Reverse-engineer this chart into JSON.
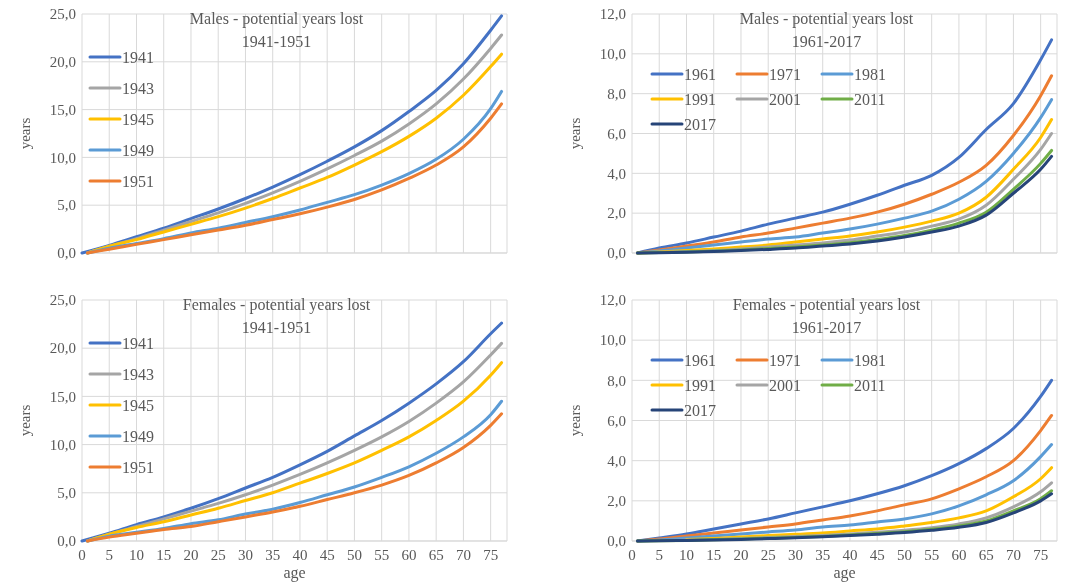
{
  "chart_data": [
    {
      "type": "line",
      "title": "Males - potential years lost\n1941-1951",
      "ylabel": "years",
      "xlim": [
        0,
        78
      ],
      "xticks": [
        0,
        5,
        10,
        15,
        20,
        25,
        30,
        35,
        40,
        45,
        50,
        55,
        60,
        65,
        70,
        75
      ],
      "ylim": [
        0,
        25
      ],
      "yticks": [
        {
          "value": 0,
          "label": "0,0"
        },
        {
          "value": 5,
          "label": "5,0"
        },
        {
          "value": 10,
          "label": "10,0"
        },
        {
          "value": 15,
          "label": "15,0"
        },
        {
          "value": 20,
          "label": "20,0"
        },
        {
          "value": 25,
          "label": "25,0"
        }
      ],
      "grid": true,
      "legend": "top left",
      "tick_labels": "y",
      "line_style": "solid",
      "marker": "none",
      "series": [
        {
          "name": "1941",
          "color": "#4472c4",
          "x": [
            0,
            5,
            10,
            15,
            20,
            25,
            30,
            35,
            40,
            45,
            50,
            55,
            60,
            65,
            70,
            75,
            77
          ],
          "values": [
            0,
            0.8,
            1.7,
            2.6,
            3.6,
            4.6,
            5.7,
            6.9,
            8.2,
            9.6,
            11.1,
            12.8,
            14.8,
            17.0,
            19.8,
            23.3,
            24.8
          ]
        },
        {
          "name": "1943",
          "color": "#a5a5a5",
          "x": [
            1,
            5,
            10,
            15,
            20,
            25,
            30,
            35,
            40,
            45,
            50,
            55,
            60,
            65,
            70,
            75,
            77
          ],
          "values": [
            0,
            0.7,
            1.5,
            2.4,
            3.3,
            4.2,
            5.2,
            6.3,
            7.5,
            8.8,
            10.2,
            11.7,
            13.5,
            15.6,
            18.2,
            21.4,
            22.8
          ]
        },
        {
          "name": "1945",
          "color": "#ffc000",
          "x": [
            1,
            5,
            10,
            15,
            20,
            25,
            30,
            35,
            40,
            45,
            50,
            55,
            60,
            65,
            70,
            75,
            77
          ],
          "values": [
            0,
            0.7,
            1.4,
            2.2,
            3.0,
            3.8,
            4.7,
            5.7,
            6.8,
            7.9,
            9.2,
            10.6,
            12.2,
            14.1,
            16.5,
            19.5,
            20.8
          ]
        },
        {
          "name": "1949",
          "color": "#5b9bd5",
          "x": [
            1,
            5,
            10,
            15,
            20,
            25,
            30,
            35,
            40,
            45,
            50,
            55,
            60,
            65,
            70,
            75,
            77
          ],
          "values": [
            0,
            0.5,
            1.0,
            1.5,
            2.1,
            2.6,
            3.2,
            3.8,
            4.5,
            5.3,
            6.1,
            7.1,
            8.3,
            9.8,
            11.9,
            15.1,
            16.9
          ]
        },
        {
          "name": "1951",
          "color": "#ed7d31",
          "x": [
            1,
            5,
            10,
            15,
            20,
            25,
            30,
            35,
            40,
            45,
            50,
            55,
            60,
            65,
            70,
            75,
            77
          ],
          "values": [
            0,
            0.4,
            0.9,
            1.4,
            1.9,
            2.4,
            2.9,
            3.5,
            4.1,
            4.8,
            5.6,
            6.6,
            7.8,
            9.2,
            11.1,
            14.1,
            15.6
          ]
        }
      ]
    },
    {
      "type": "line",
      "title": "Males - potential years lost\n1961-2017",
      "ylabel": "years",
      "xlim": [
        0,
        78
      ],
      "xticks": [
        0,
        5,
        10,
        15,
        20,
        25,
        30,
        35,
        40,
        45,
        50,
        55,
        60,
        65,
        70,
        75
      ],
      "ylim": [
        0,
        12
      ],
      "yticks": [
        {
          "value": 0,
          "label": "0,0"
        },
        {
          "value": 2,
          "label": "2,0"
        },
        {
          "value": 4,
          "label": "4,0"
        },
        {
          "value": 6,
          "label": "6,0"
        },
        {
          "value": 8,
          "label": "8,0"
        },
        {
          "value": 10,
          "label": "10,0"
        },
        {
          "value": 12,
          "label": "12,0"
        }
      ],
      "grid": true,
      "legend": "top left",
      "tick_labels": "y",
      "line_style": "solid",
      "marker": "none",
      "series": [
        {
          "name": "1961",
          "color": "#4472c4",
          "x": [
            1,
            5,
            10,
            15,
            20,
            25,
            30,
            35,
            40,
            45,
            50,
            55,
            60,
            65,
            70,
            75,
            77
          ],
          "values": [
            0,
            0.25,
            0.5,
            0.8,
            1.1,
            1.45,
            1.75,
            2.05,
            2.45,
            2.9,
            3.4,
            3.9,
            4.8,
            6.2,
            7.5,
            9.7,
            10.7
          ]
        },
        {
          "name": "1971",
          "color": "#ed7d31",
          "x": [
            1,
            5,
            10,
            15,
            20,
            25,
            30,
            35,
            40,
            45,
            50,
            55,
            60,
            65,
            70,
            75,
            77
          ],
          "values": [
            0,
            0.15,
            0.35,
            0.55,
            0.8,
            1.0,
            1.25,
            1.5,
            1.75,
            2.05,
            2.45,
            2.95,
            3.55,
            4.4,
            5.9,
            7.9,
            8.9
          ]
        },
        {
          "name": "1981",
          "color": "#5b9bd5",
          "x": [
            1,
            5,
            10,
            15,
            20,
            25,
            30,
            35,
            40,
            45,
            50,
            55,
            60,
            65,
            70,
            75,
            77
          ],
          "values": [
            0,
            0.1,
            0.25,
            0.4,
            0.55,
            0.7,
            0.8,
            1.0,
            1.2,
            1.45,
            1.75,
            2.1,
            2.7,
            3.6,
            5.0,
            6.8,
            7.7
          ]
        },
        {
          "name": "1991",
          "color": "#ffc000",
          "x": [
            1,
            5,
            10,
            15,
            20,
            25,
            30,
            35,
            40,
            45,
            50,
            55,
            60,
            65,
            70,
            75,
            77
          ],
          "values": [
            0,
            0.05,
            0.12,
            0.2,
            0.3,
            0.4,
            0.55,
            0.7,
            0.85,
            1.05,
            1.3,
            1.6,
            2.0,
            2.8,
            4.2,
            5.8,
            6.7
          ]
        },
        {
          "name": "2001",
          "color": "#a5a5a5",
          "x": [
            1,
            5,
            10,
            15,
            20,
            25,
            30,
            35,
            40,
            45,
            50,
            55,
            60,
            65,
            70,
            75,
            77
          ],
          "values": [
            0,
            0.03,
            0.07,
            0.12,
            0.2,
            0.3,
            0.4,
            0.5,
            0.65,
            0.85,
            1.05,
            1.35,
            1.7,
            2.4,
            3.7,
            5.2,
            6.0
          ]
        },
        {
          "name": "2011",
          "color": "#70ad47",
          "x": [
            1,
            5,
            10,
            15,
            20,
            25,
            30,
            35,
            40,
            45,
            50,
            55,
            60,
            65,
            70,
            75,
            77
          ],
          "values": [
            0,
            0.02,
            0.05,
            0.1,
            0.15,
            0.22,
            0.3,
            0.4,
            0.52,
            0.68,
            0.88,
            1.15,
            1.5,
            2.05,
            3.2,
            4.5,
            5.15
          ]
        },
        {
          "name": "2017",
          "color": "#264478",
          "x": [
            1,
            5,
            10,
            15,
            20,
            25,
            30,
            35,
            40,
            45,
            50,
            55,
            60,
            65,
            70,
            75,
            77
          ],
          "values": [
            0,
            0.01,
            0.04,
            0.08,
            0.12,
            0.18,
            0.25,
            0.35,
            0.45,
            0.6,
            0.8,
            1.05,
            1.35,
            1.9,
            3.0,
            4.2,
            4.85
          ]
        }
      ]
    },
    {
      "type": "line",
      "title": "Females - potential years lost\n1941-1951",
      "xlabel": "age",
      "ylabel": "years",
      "xlim": [
        0,
        78
      ],
      "xticks": [
        0,
        5,
        10,
        15,
        20,
        25,
        30,
        35,
        40,
        45,
        50,
        55,
        60,
        65,
        70,
        75
      ],
      "ylim": [
        0,
        25
      ],
      "yticks": [
        {
          "value": 0,
          "label": "0,0"
        },
        {
          "value": 5,
          "label": "5,0"
        },
        {
          "value": 10,
          "label": "10,0"
        },
        {
          "value": 15,
          "label": "15,0"
        },
        {
          "value": 20,
          "label": "20,0"
        },
        {
          "value": 25,
          "label": "25,0"
        }
      ],
      "grid": true,
      "legend": "top left",
      "line_style": "solid",
      "marker": "none",
      "series": [
        {
          "name": "1941",
          "color": "#4472c4",
          "x": [
            0,
            5,
            10,
            15,
            20,
            25,
            30,
            35,
            40,
            45,
            50,
            55,
            60,
            65,
            70,
            75,
            77
          ],
          "values": [
            0,
            0.8,
            1.7,
            2.5,
            3.4,
            4.4,
            5.5,
            6.6,
            7.9,
            9.3,
            10.9,
            12.5,
            14.3,
            16.3,
            18.6,
            21.5,
            22.6
          ]
        },
        {
          "name": "1943",
          "color": "#a5a5a5",
          "x": [
            1,
            5,
            10,
            15,
            20,
            25,
            30,
            35,
            40,
            45,
            50,
            55,
            60,
            65,
            70,
            75,
            77
          ],
          "values": [
            0,
            0.7,
            1.5,
            2.3,
            3.1,
            3.9,
            4.8,
            5.8,
            6.9,
            8.1,
            9.4,
            10.8,
            12.4,
            14.3,
            16.5,
            19.3,
            20.5
          ]
        },
        {
          "name": "1945",
          "color": "#ffc000",
          "x": [
            1,
            5,
            10,
            15,
            20,
            25,
            30,
            35,
            40,
            45,
            50,
            55,
            60,
            65,
            70,
            75,
            77
          ],
          "values": [
            0,
            0.7,
            1.4,
            2.0,
            2.7,
            3.4,
            4.2,
            5.0,
            6.0,
            7.0,
            8.1,
            9.4,
            10.8,
            12.5,
            14.5,
            17.2,
            18.5
          ]
        },
        {
          "name": "1949",
          "color": "#5b9bd5",
          "x": [
            1,
            5,
            10,
            15,
            20,
            25,
            30,
            35,
            40,
            45,
            50,
            55,
            60,
            65,
            70,
            75,
            77
          ],
          "values": [
            0,
            0.5,
            0.9,
            1.3,
            1.8,
            2.2,
            2.8,
            3.3,
            4.0,
            4.8,
            5.6,
            6.6,
            7.7,
            9.1,
            10.8,
            13.1,
            14.5
          ]
        },
        {
          "name": "1951",
          "color": "#ed7d31",
          "x": [
            1,
            5,
            10,
            15,
            20,
            25,
            30,
            35,
            40,
            45,
            50,
            55,
            60,
            65,
            70,
            75,
            77
          ],
          "values": [
            0,
            0.4,
            0.8,
            1.2,
            1.5,
            2.0,
            2.5,
            3.0,
            3.6,
            4.3,
            5.0,
            5.8,
            6.8,
            8.1,
            9.7,
            12.0,
            13.2
          ]
        }
      ]
    },
    {
      "type": "line",
      "title": "Females - potential years lost\n1961-2017",
      "xlabel": "age",
      "ylabel": "years",
      "xlim": [
        0,
        78
      ],
      "xticks": [
        0,
        5,
        10,
        15,
        20,
        25,
        30,
        35,
        40,
        45,
        50,
        55,
        60,
        65,
        70,
        75
      ],
      "ylim": [
        0,
        12
      ],
      "yticks": [
        {
          "value": 0,
          "label": "0,0"
        },
        {
          "value": 2,
          "label": "2,0"
        },
        {
          "value": 4,
          "label": "4,0"
        },
        {
          "value": 6,
          "label": "6,0"
        },
        {
          "value": 8,
          "label": "8,0"
        },
        {
          "value": 10,
          "label": "10,0"
        },
        {
          "value": 12,
          "label": "12,0"
        }
      ],
      "grid": true,
      "legend": "top left",
      "line_style": "solid",
      "marker": "none",
      "series": [
        {
          "name": "1961",
          "color": "#4472c4",
          "x": [
            1,
            5,
            10,
            15,
            20,
            25,
            30,
            35,
            40,
            45,
            50,
            55,
            60,
            65,
            70,
            75,
            77
          ],
          "values": [
            0,
            0.15,
            0.35,
            0.6,
            0.85,
            1.1,
            1.4,
            1.7,
            2.0,
            2.35,
            2.75,
            3.25,
            3.85,
            4.6,
            5.6,
            7.2,
            8.0
          ]
        },
        {
          "name": "1971",
          "color": "#ed7d31",
          "x": [
            1,
            5,
            10,
            15,
            20,
            25,
            30,
            35,
            40,
            45,
            50,
            55,
            60,
            65,
            70,
            75,
            77
          ],
          "values": [
            0,
            0.1,
            0.25,
            0.4,
            0.55,
            0.7,
            0.85,
            1.05,
            1.25,
            1.5,
            1.8,
            2.1,
            2.6,
            3.2,
            4.0,
            5.5,
            6.25
          ]
        },
        {
          "name": "1981",
          "color": "#5b9bd5",
          "x": [
            1,
            5,
            10,
            15,
            20,
            25,
            30,
            35,
            40,
            45,
            50,
            55,
            60,
            65,
            70,
            75,
            77
          ],
          "values": [
            0,
            0.05,
            0.15,
            0.25,
            0.35,
            0.45,
            0.55,
            0.7,
            0.8,
            0.95,
            1.1,
            1.35,
            1.75,
            2.3,
            3.0,
            4.2,
            4.8
          ]
        },
        {
          "name": "1991",
          "color": "#ffc000",
          "x": [
            10,
            15,
            20,
            25,
            30,
            35,
            40,
            45,
            50,
            55,
            60,
            65,
            70,
            75,
            77
          ],
          "values": [
            0.08,
            0.13,
            0.2,
            0.27,
            0.33,
            0.4,
            0.5,
            0.6,
            0.75,
            0.92,
            1.15,
            1.5,
            2.2,
            3.1,
            3.65
          ]
        },
        {
          "name": "2001",
          "color": "#a5a5a5",
          "x": [
            1,
            5,
            10,
            15,
            20,
            25,
            30,
            35,
            40,
            45,
            50,
            55,
            60,
            65,
            70,
            75,
            77
          ],
          "values": [
            0,
            0.02,
            0.05,
            0.08,
            0.12,
            0.17,
            0.22,
            0.28,
            0.35,
            0.43,
            0.53,
            0.66,
            0.85,
            1.15,
            1.7,
            2.45,
            2.9
          ]
        },
        {
          "name": "2011",
          "color": "#70ad47",
          "x": [
            1,
            5,
            10,
            15,
            20,
            25,
            30,
            35,
            40,
            45,
            50,
            55,
            60,
            65,
            70,
            75,
            77
          ],
          "values": [
            0,
            0.01,
            0.03,
            0.06,
            0.1,
            0.14,
            0.18,
            0.23,
            0.3,
            0.37,
            0.46,
            0.58,
            0.75,
            1.0,
            1.5,
            2.1,
            2.5
          ]
        },
        {
          "name": "2017",
          "color": "#264478",
          "x": [
            1,
            5,
            10,
            15,
            20,
            25,
            30,
            35,
            40,
            45,
            50,
            55,
            60,
            65,
            70,
            75,
            77
          ],
          "values": [
            0,
            0.01,
            0.03,
            0.05,
            0.08,
            0.12,
            0.16,
            0.21,
            0.27,
            0.34,
            0.42,
            0.53,
            0.68,
            0.92,
            1.4,
            2.0,
            2.35
          ]
        }
      ]
    }
  ]
}
